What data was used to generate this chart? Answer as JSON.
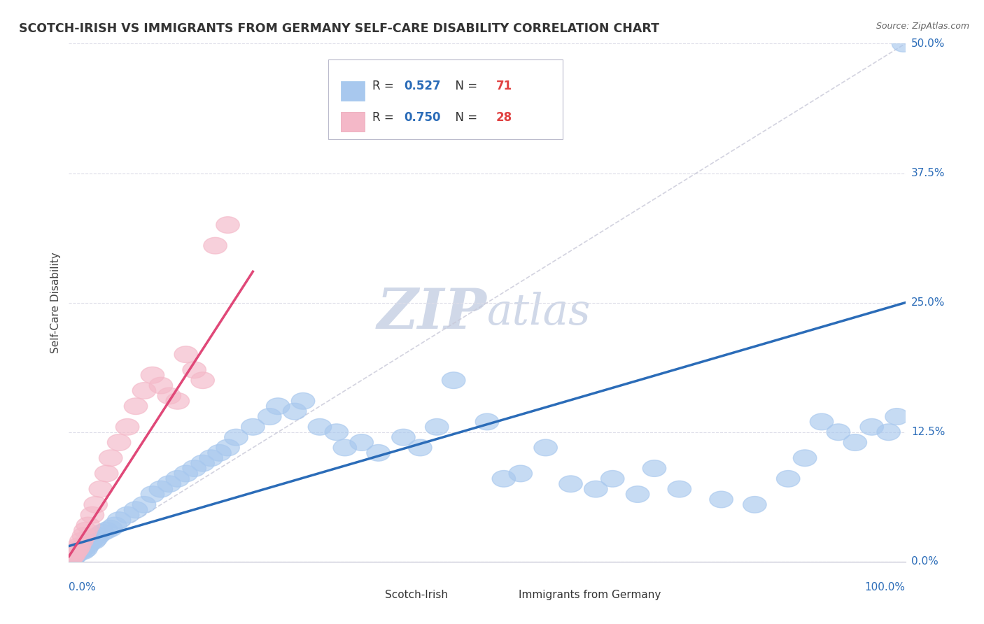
{
  "title": "SCOTCH-IRISH VS IMMIGRANTS FROM GERMANY SELF-CARE DISABILITY CORRELATION CHART",
  "source": "Source: ZipAtlas.com",
  "ylabel": "Self-Care Disability",
  "ytick_labels": [
    "0.0%",
    "12.5%",
    "25.0%",
    "37.5%",
    "50.0%"
  ],
  "ytick_values": [
    0,
    12.5,
    25.0,
    37.5,
    50.0
  ],
  "xlim": [
    0,
    100
  ],
  "ylim": [
    0,
    50
  ],
  "blue_R": 0.527,
  "blue_N": 71,
  "pink_R": 0.75,
  "pink_N": 28,
  "blue_color": "#A8C8EE",
  "pink_color": "#F4B8C8",
  "blue_line_color": "#2B6CB8",
  "pink_line_color": "#E04878",
  "diagonal_color": "#C8C8D8",
  "accent_color": "#2B6CB8",
  "red_color": "#E04040",
  "watermark_color": "#D0D8E8",
  "background_color": "#FFFFFF",
  "grid_color": "#DDDDE8",
  "blue_scatter_x": [
    0.3,
    0.5,
    0.6,
    0.8,
    1.0,
    1.2,
    1.4,
    1.5,
    1.7,
    1.8,
    2.0,
    2.2,
    2.5,
    2.7,
    3.0,
    3.2,
    3.5,
    4.0,
    4.5,
    5.0,
    5.5,
    6.0,
    7.0,
    8.0,
    9.0,
    10.0,
    11.0,
    12.0,
    13.0,
    14.0,
    15.0,
    16.0,
    17.0,
    18.0,
    19.0,
    20.0,
    22.0,
    24.0,
    25.0,
    27.0,
    28.0,
    30.0,
    32.0,
    33.0,
    35.0,
    37.0,
    40.0,
    42.0,
    44.0,
    46.0,
    50.0,
    52.0,
    54.0,
    57.0,
    60.0,
    63.0,
    65.0,
    68.0,
    70.0,
    73.0,
    78.0,
    82.0,
    86.0,
    88.0,
    90.0,
    92.0,
    94.0,
    96.0,
    98.0,
    99.0,
    99.8
  ],
  "blue_scatter_y": [
    0.2,
    0.4,
    0.5,
    0.6,
    0.8,
    1.0,
    1.0,
    1.2,
    1.0,
    1.5,
    1.2,
    1.5,
    1.8,
    2.0,
    2.0,
    2.2,
    2.5,
    2.8,
    3.0,
    3.2,
    3.5,
    4.0,
    4.5,
    5.0,
    5.5,
    6.5,
    7.0,
    7.5,
    8.0,
    8.5,
    9.0,
    9.5,
    10.0,
    10.5,
    11.0,
    12.0,
    13.0,
    14.0,
    15.0,
    14.5,
    15.5,
    13.0,
    12.5,
    11.0,
    11.5,
    10.5,
    12.0,
    11.0,
    13.0,
    17.5,
    13.5,
    8.0,
    8.5,
    11.0,
    7.5,
    7.0,
    8.0,
    6.5,
    9.0,
    7.0,
    6.0,
    5.5,
    8.0,
    10.0,
    13.5,
    12.5,
    11.5,
    13.0,
    12.5,
    14.0,
    50.0
  ],
  "pink_scatter_x": [
    0.2,
    0.4,
    0.6,
    0.8,
    1.0,
    1.2,
    1.5,
    1.8,
    2.0,
    2.3,
    2.8,
    3.2,
    3.8,
    4.5,
    5.0,
    6.0,
    7.0,
    8.0,
    9.0,
    10.0,
    11.0,
    12.0,
    13.0,
    14.0,
    15.0,
    16.0,
    17.5,
    19.0
  ],
  "pink_scatter_y": [
    0.3,
    0.5,
    0.7,
    1.0,
    1.2,
    1.5,
    2.0,
    2.5,
    3.0,
    3.5,
    4.5,
    5.5,
    7.0,
    8.5,
    10.0,
    11.5,
    13.0,
    15.0,
    16.5,
    18.0,
    17.0,
    16.0,
    15.5,
    20.0,
    18.5,
    17.5,
    30.5,
    32.5
  ],
  "blue_line_x": [
    0,
    100
  ],
  "blue_line_y": [
    1.5,
    25.0
  ],
  "pink_line_x": [
    0,
    22
  ],
  "pink_line_y": [
    0.5,
    28.0
  ]
}
